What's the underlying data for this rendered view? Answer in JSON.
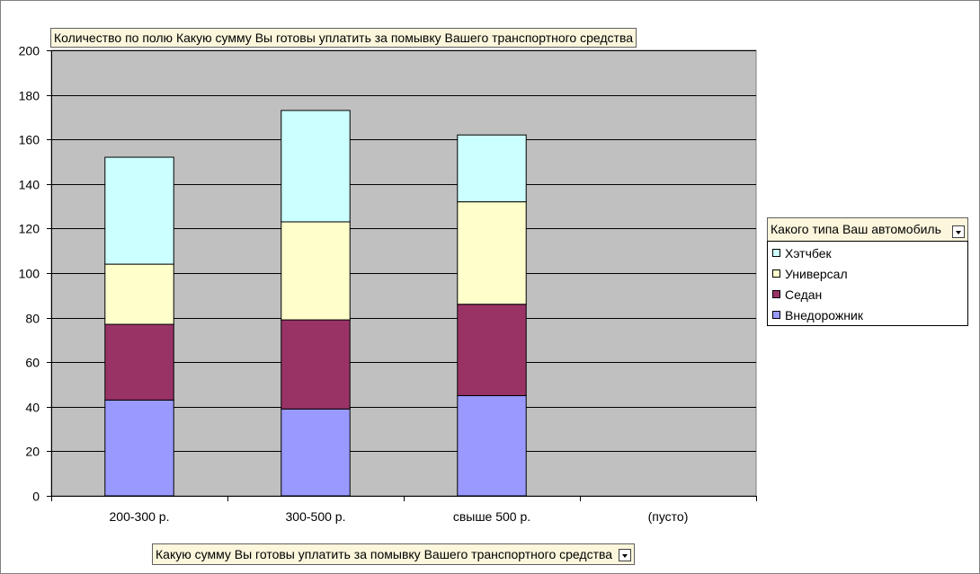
{
  "chart_data": {
    "type": "bar",
    "stacked": true,
    "categories": [
      "200-300 р.",
      "300-500 р.",
      "свыше 500 р.",
      "(пусто)"
    ],
    "series": [
      {
        "name": "Внедорожник",
        "values": [
          43,
          39,
          45,
          0
        ],
        "color": "#9999ff"
      },
      {
        "name": "Седан",
        "values": [
          34,
          40,
          41,
          0
        ],
        "color": "#993366"
      },
      {
        "name": "Универсал",
        "values": [
          27,
          44,
          46,
          0
        ],
        "color": "#ffffcc"
      },
      {
        "name": "Хэтчбек",
        "values": [
          48,
          50,
          30,
          0
        ],
        "color": "#ccffff"
      }
    ],
    "ylim": [
      0,
      200
    ],
    "y_ticks": [
      0,
      20,
      40,
      60,
      80,
      100,
      120,
      140,
      160,
      180,
      200
    ],
    "grid": true,
    "plot_background": "#c0c0c0",
    "legend_position": "right"
  },
  "fields": {
    "data_field": "Количество по полю Какую сумму Вы готовы уплатить за помывку Вашего транспортного средства",
    "category_field": "Какую сумму Вы готовы уплатить за помывку Вашего транспортного средства",
    "legend_field": "Какого типа Ваш автомобиль"
  },
  "legend": {
    "items": [
      {
        "label": "Хэтчбек",
        "color": "#ccffff"
      },
      {
        "label": "Универсал",
        "color": "#ffffcc"
      },
      {
        "label": "Седан",
        "color": "#993366"
      },
      {
        "label": "Внедорожник",
        "color": "#9999ff"
      }
    ]
  }
}
